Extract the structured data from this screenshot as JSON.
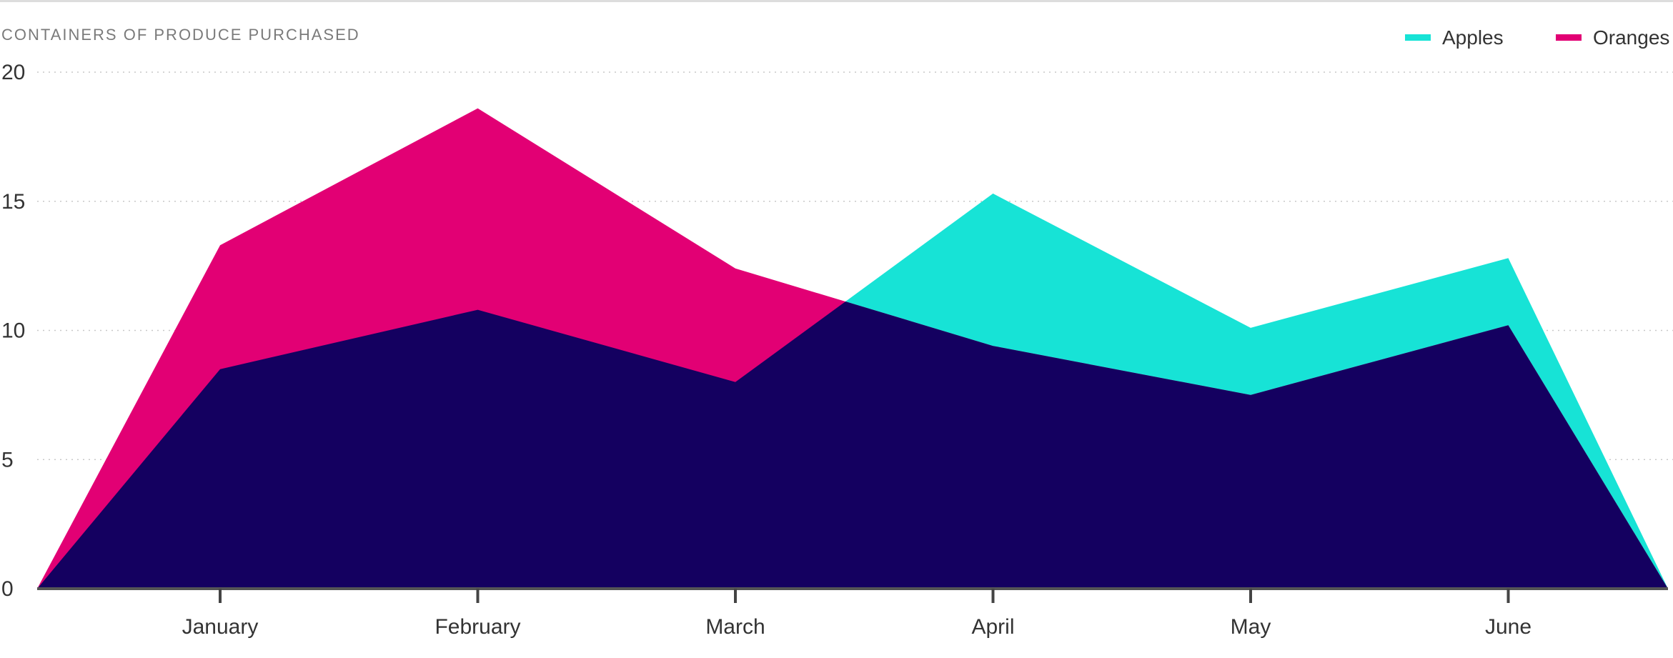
{
  "chart_data": {
    "type": "area",
    "ylabel": "CONTAINERS OF PRODUCE PURCHASED",
    "categories": [
      "",
      "January",
      "February",
      "March",
      "April",
      "May",
      "June",
      ""
    ],
    "ylim": [
      0,
      20
    ],
    "yticks": [
      0,
      5,
      10,
      15,
      20
    ],
    "grid": true,
    "legend_position": "top-right",
    "series": [
      {
        "name": "Apples",
        "color": "#17e3d6",
        "values": [
          0,
          8.5,
          10.8,
          8.0,
          15.3,
          10.1,
          12.8,
          0
        ]
      },
      {
        "name": "Oranges",
        "color": "#e20074",
        "values": [
          0,
          13.3,
          18.6,
          12.4,
          9.4,
          7.5,
          10.2,
          0
        ]
      }
    ],
    "overlap_color": "#140060"
  }
}
